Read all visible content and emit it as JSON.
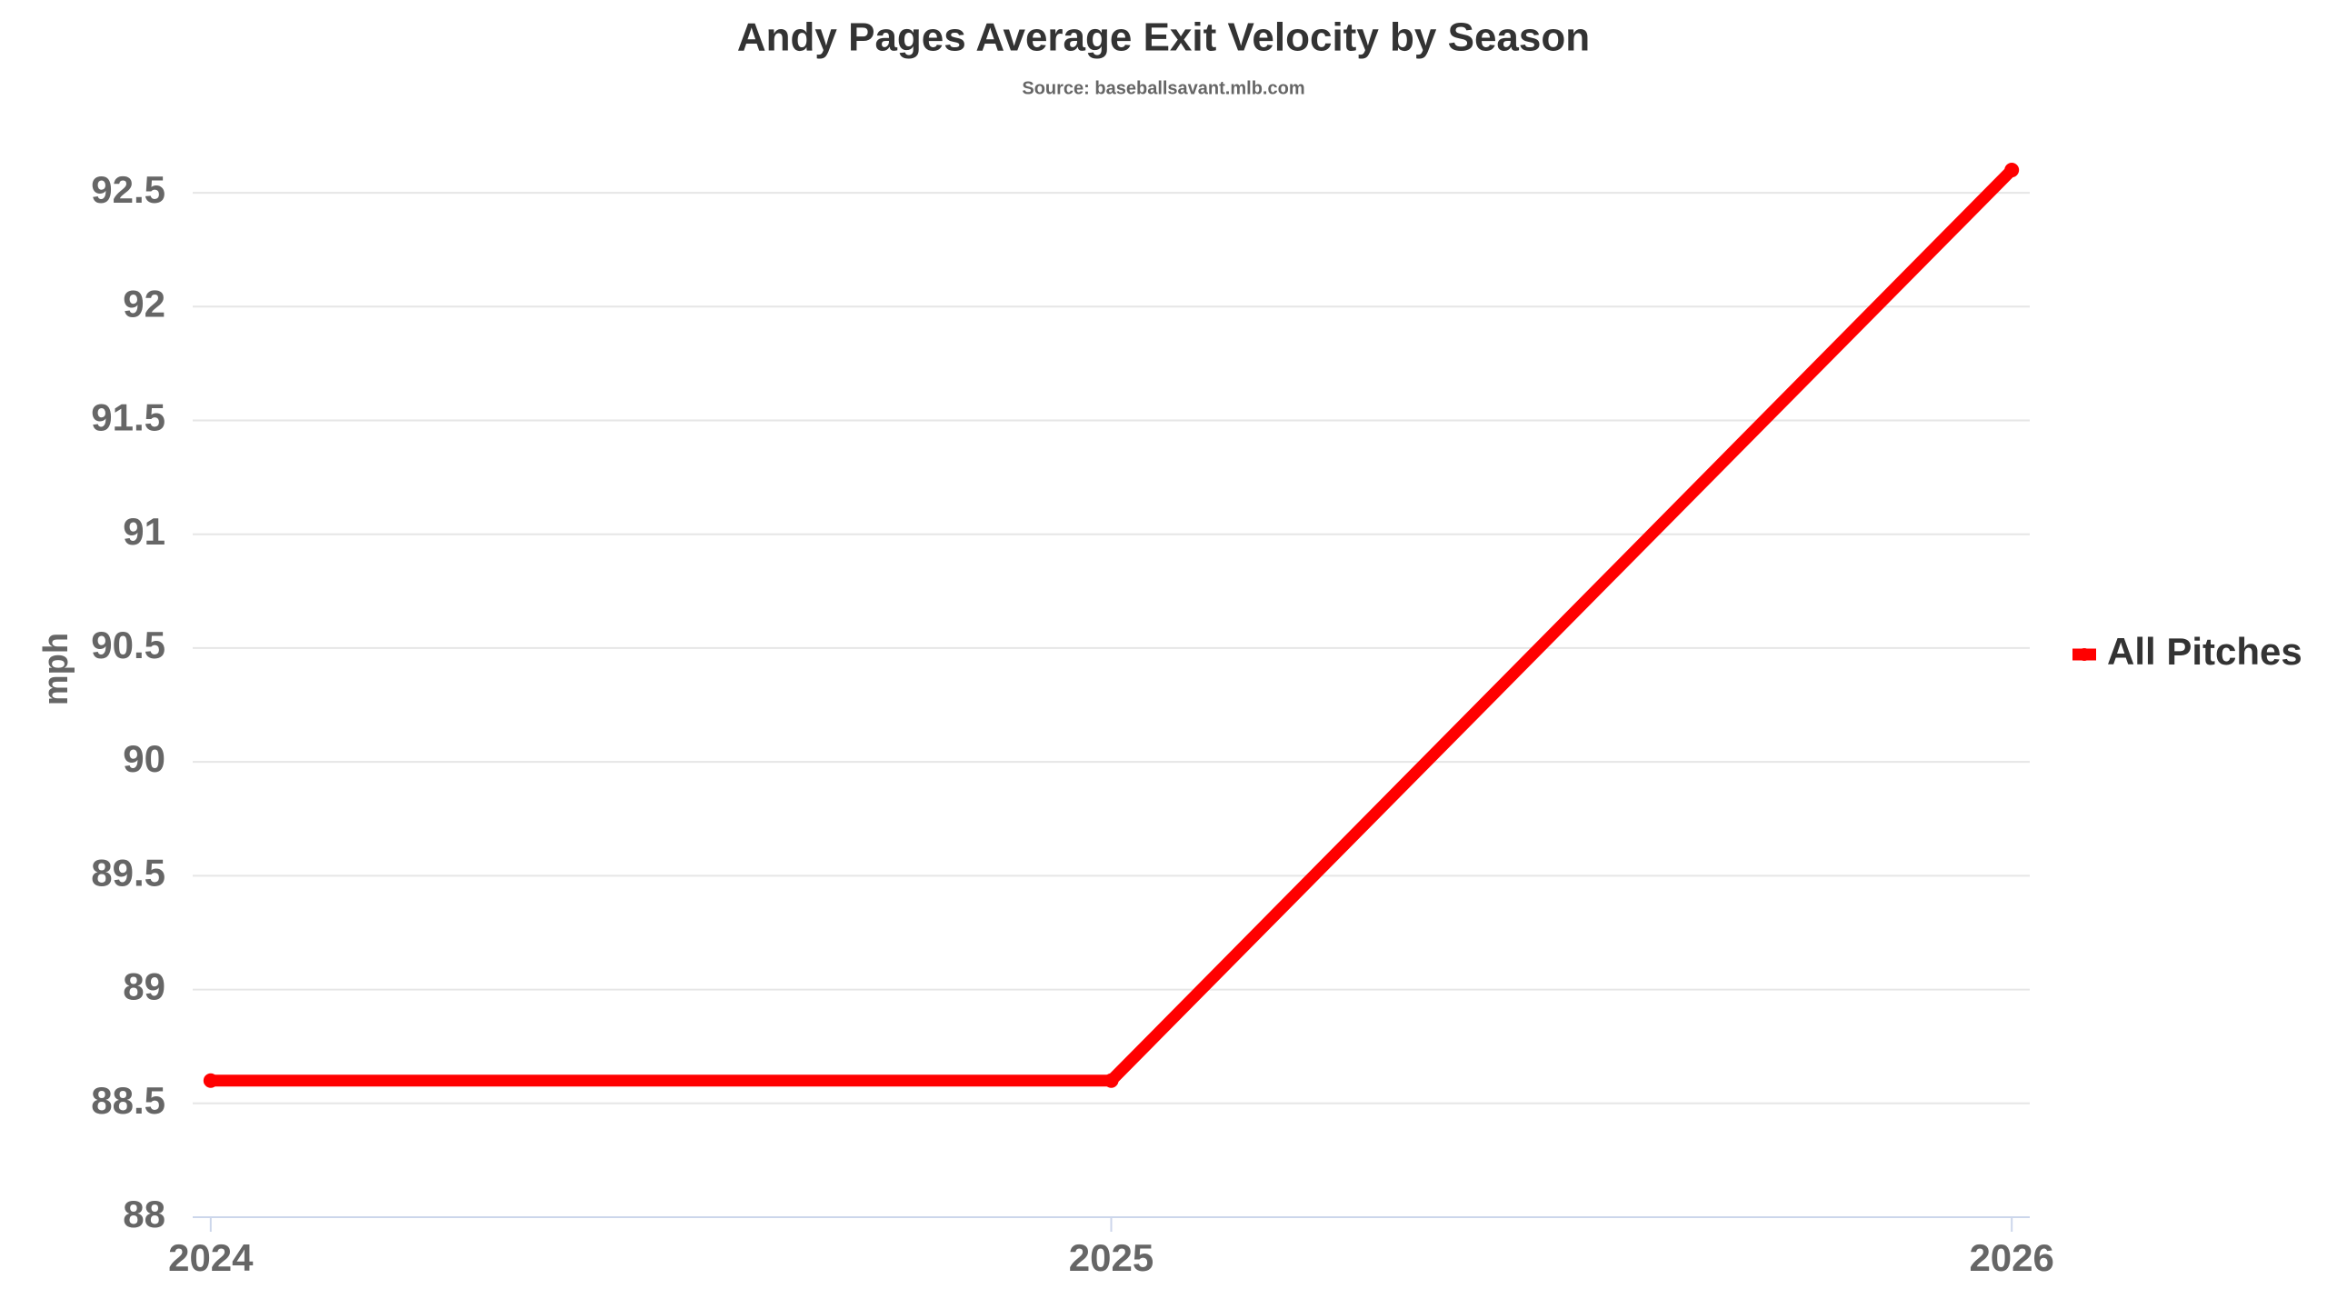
{
  "chart_data": {
    "type": "line",
    "title": "Andy Pages Average Exit Velocity by Season",
    "subtitle": "Source: baseballsavant.mlb.com",
    "y_label": "mph",
    "x": [
      2024,
      2025,
      2026
    ],
    "xlim": [
      2023.98,
      2026.02
    ],
    "xticks": [
      2024,
      2025,
      2026
    ],
    "ylim": [
      88,
      92.7
    ],
    "yticks": [
      88,
      88.5,
      89,
      89.5,
      90,
      90.5,
      91,
      91.5,
      92,
      92.5
    ],
    "grid": true,
    "legend": "right",
    "series": [
      {
        "name": "All Pitches",
        "color": "#ff0000",
        "values": [
          88.6,
          88.6,
          92.6
        ]
      }
    ]
  }
}
